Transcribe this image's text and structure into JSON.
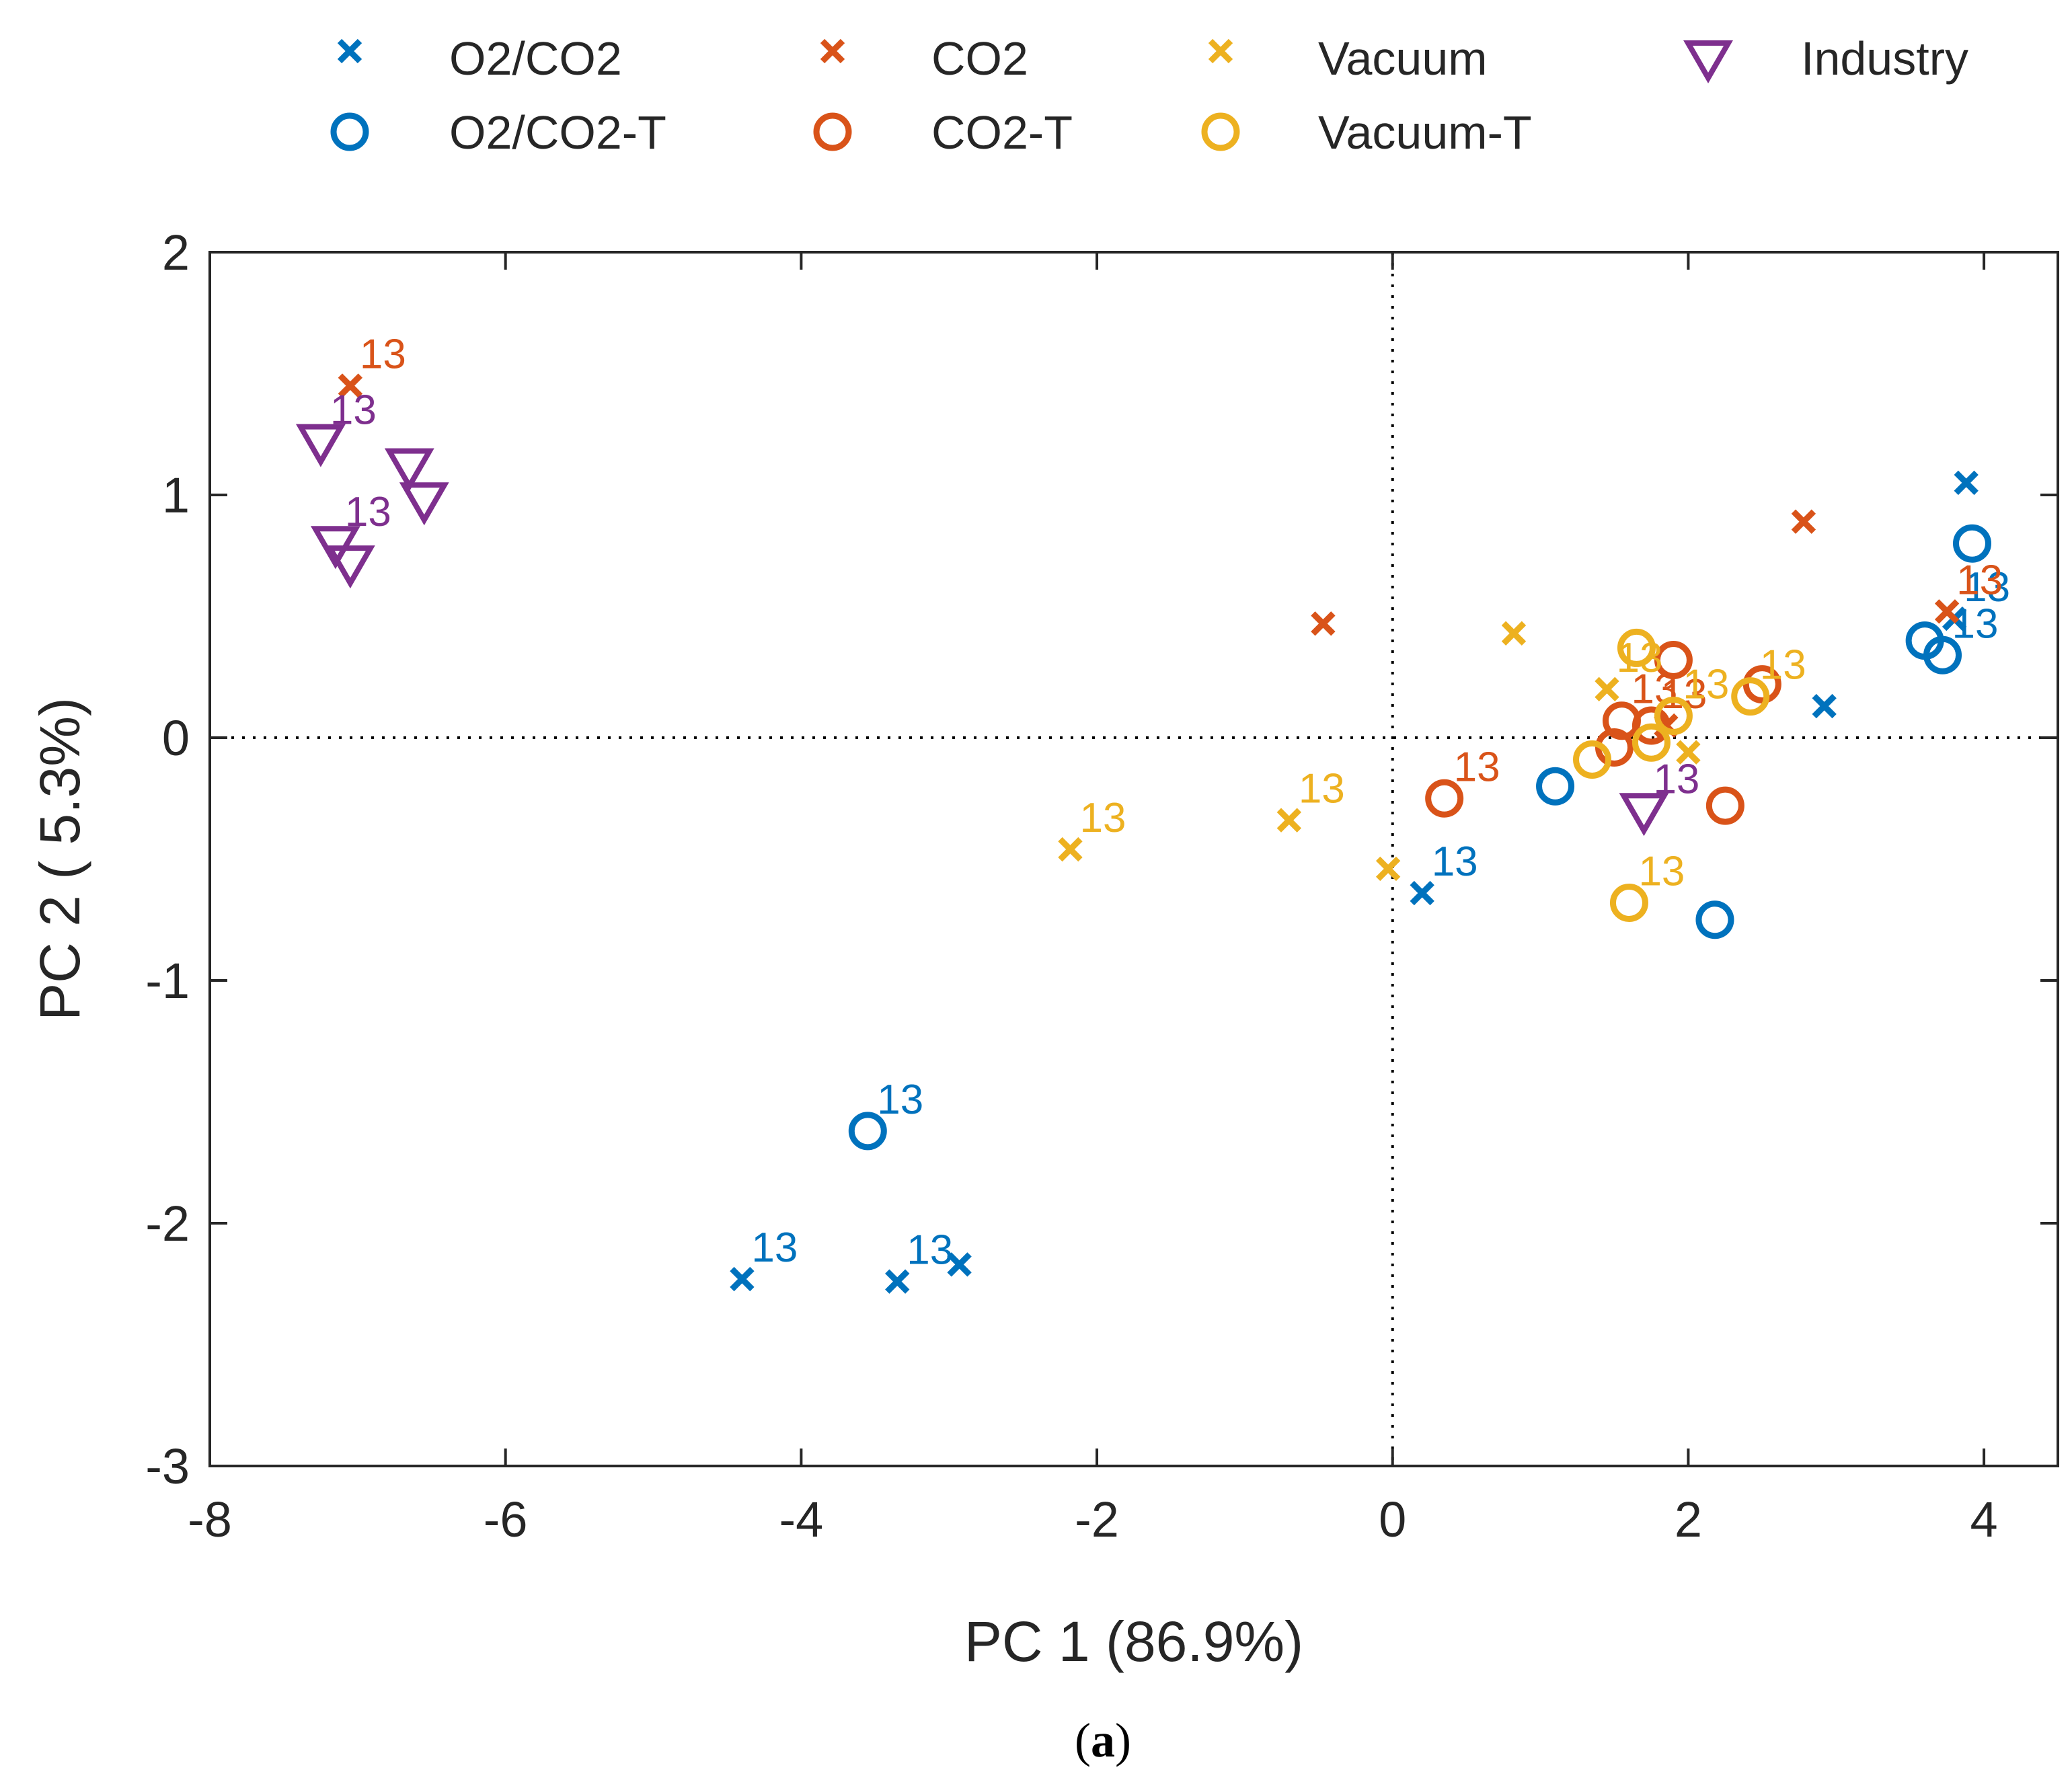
{
  "chart_data": {
    "type": "scatter",
    "title": "",
    "xlabel": "PC 1 (86.9%)",
    "ylabel": "PC 2 ( 5.3%)",
    "xlim": [
      -8,
      4.5
    ],
    "ylim": [
      -3,
      2
    ],
    "xticks": [
      -8,
      -6,
      -4,
      -2,
      0,
      2,
      4
    ],
    "yticks": [
      -3,
      -2,
      -1,
      0,
      1,
      2
    ],
    "xtick_labels": [
      "-8",
      "-6",
      "-4",
      "-2",
      "0",
      "2",
      "4"
    ],
    "ytick_labels": [
      "-3",
      "-2",
      "-1",
      "0",
      "1",
      "2"
    ],
    "grid": false,
    "zero_lines": true,
    "legend_position": "top",
    "caption_prefix": "(",
    "caption_letter": "a",
    "caption_suffix": ")",
    "series": [
      {
        "name": "O2/CO2",
        "marker": "x",
        "color": "#0072BD",
        "points": [
          {
            "x": 3.88,
            "y": 1.05
          },
          {
            "x": 2.92,
            "y": 0.13
          },
          {
            "x": 0.2,
            "y": -0.64,
            "label": "13"
          },
          {
            "x": -4.4,
            "y": -2.23,
            "label": "13"
          },
          {
            "x": -3.35,
            "y": -2.24,
            "label": "13"
          },
          {
            "x": -2.93,
            "y": -2.17
          },
          {
            "x": 3.8,
            "y": 0.49,
            "label": "13"
          }
        ]
      },
      {
        "name": "O2/CO2-T",
        "marker": "o",
        "color": "#0072BD",
        "points": [
          {
            "x": 3.92,
            "y": 0.8
          },
          {
            "x": 3.6,
            "y": 0.4
          },
          {
            "x": 3.72,
            "y": 0.34,
            "label": "13"
          },
          {
            "x": 1.1,
            "y": -0.2
          },
          {
            "x": 2.18,
            "y": -0.75
          },
          {
            "x": -3.55,
            "y": -1.62,
            "label": "13"
          }
        ]
      },
      {
        "name": "CO2",
        "marker": "x",
        "color": "#D95319",
        "points": [
          {
            "x": -7.05,
            "y": 1.45,
            "label": "13"
          },
          {
            "x": -0.47,
            "y": 0.47
          },
          {
            "x": 2.78,
            "y": 0.89
          },
          {
            "x": 3.75,
            "y": 0.52,
            "label": "13"
          },
          {
            "x": 1.85,
            "y": 0.05
          }
        ]
      },
      {
        "name": "CO2-T",
        "marker": "o",
        "color": "#D95319",
        "points": [
          {
            "x": 0.35,
            "y": -0.25,
            "label": "13"
          },
          {
            "x": 1.9,
            "y": 0.32
          },
          {
            "x": 2.5,
            "y": 0.22
          },
          {
            "x": 2.25,
            "y": -0.28
          },
          {
            "x": 1.5,
            "y": -0.04
          },
          {
            "x": 1.55,
            "y": 0.07,
            "label": "13"
          },
          {
            "x": 1.75,
            "y": 0.05,
            "label": "13"
          }
        ]
      },
      {
        "name": "Vacuum",
        "marker": "x",
        "color": "#EDB120",
        "points": [
          {
            "x": 0.82,
            "y": 0.43
          },
          {
            "x": 1.45,
            "y": 0.2,
            "label": "13"
          },
          {
            "x": 2.0,
            "y": -0.06
          },
          {
            "x": -0.7,
            "y": -0.34,
            "label": "13"
          },
          {
            "x": -2.18,
            "y": -0.46,
            "label": "13"
          },
          {
            "x": -0.03,
            "y": -0.54
          }
        ]
      },
      {
        "name": "Vacuum-T",
        "marker": "o",
        "color": "#EDB120",
        "points": [
          {
            "x": 1.65,
            "y": 0.37
          },
          {
            "x": 2.42,
            "y": 0.17,
            "label": "13"
          },
          {
            "x": 1.35,
            "y": -0.09
          },
          {
            "x": 1.75,
            "y": -0.02
          },
          {
            "x": 1.9,
            "y": 0.09,
            "label": "13"
          },
          {
            "x": 1.6,
            "y": -0.68,
            "label": "13"
          }
        ]
      },
      {
        "name": "Industry",
        "marker": "v",
        "color": "#7E2F8E",
        "points": [
          {
            "x": -7.25,
            "y": 1.22,
            "label": "13"
          },
          {
            "x": -6.65,
            "y": 1.12
          },
          {
            "x": -6.55,
            "y": 0.98
          },
          {
            "x": -7.15,
            "y": 0.8,
            "label": "13"
          },
          {
            "x": -7.05,
            "y": 0.72
          },
          {
            "x": 1.7,
            "y": -0.3,
            "label": "13"
          }
        ]
      }
    ]
  }
}
